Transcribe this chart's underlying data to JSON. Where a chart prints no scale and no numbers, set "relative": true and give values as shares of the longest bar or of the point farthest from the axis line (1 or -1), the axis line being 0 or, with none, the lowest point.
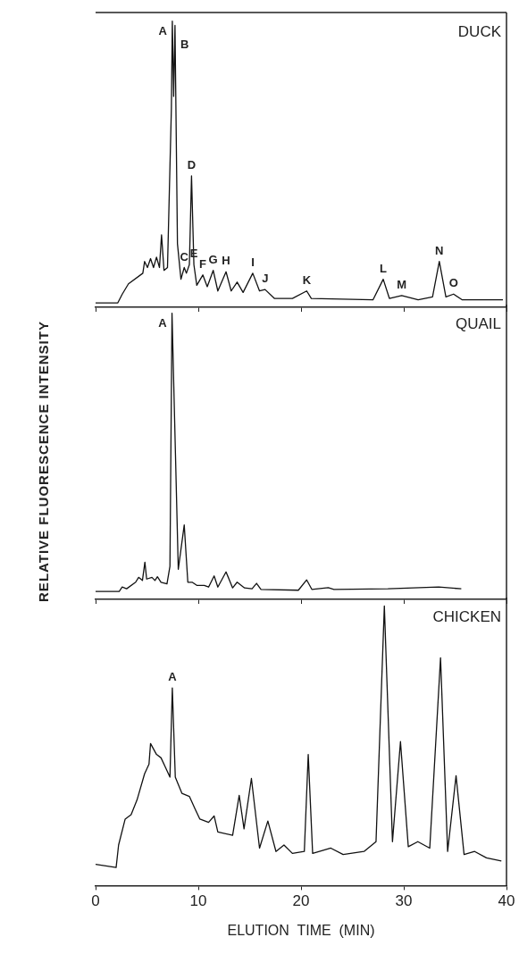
{
  "chart_data": [
    {
      "type": "line",
      "title": "DUCK",
      "relative": true,
      "color": "#111111",
      "marker": "none",
      "line_style": "solid",
      "tick_labels": false,
      "xlim": [
        0,
        40
      ],
      "xticks": [
        0,
        10,
        20,
        30,
        40
      ],
      "x": [
        0,
        2.15,
        2.6,
        3.2,
        4.6,
        4.77,
        5.05,
        5.35,
        5.64,
        5.93,
        6.22,
        6.42,
        6.66,
        7.0,
        7.38,
        7.47,
        7.6,
        7.73,
        7.97,
        8.31,
        8.63,
        8.84,
        9.13,
        9.34,
        9.57,
        9.85,
        10.44,
        10.87,
        11.45,
        11.9,
        12.7,
        13.2,
        13.78,
        14.36,
        15.3,
        15.96,
        16.5,
        17.4,
        19.16,
        20.55,
        21.0,
        27.0,
        28.0,
        28.6,
        29.8,
        31.4,
        32.8,
        33.46,
        34.1,
        34.85,
        35.7,
        39.65
      ],
      "values": [
        0.015,
        0.015,
        0.046,
        0.082,
        0.119,
        0.16,
        0.139,
        0.17,
        0.139,
        0.175,
        0.139,
        0.253,
        0.129,
        0.139,
        0.696,
        1.0,
        0.737,
        0.985,
        0.222,
        0.098,
        0.139,
        0.119,
        0.149,
        0.459,
        0.149,
        0.077,
        0.113,
        0.072,
        0.129,
        0.057,
        0.124,
        0.057,
        0.088,
        0.052,
        0.119,
        0.057,
        0.062,
        0.031,
        0.031,
        0.057,
        0.031,
        0.026,
        0.098,
        0.031,
        0.041,
        0.026,
        0.036,
        0.16,
        0.036,
        0.046,
        0.026,
        0.026
      ],
      "annotations": [
        {
          "text": "A",
          "x": 7.47,
          "y": 1.0
        },
        {
          "text": "B",
          "x": 7.73,
          "y": 0.985
        },
        {
          "text": "C",
          "x": 8.63,
          "y": 0.139
        },
        {
          "text": "D",
          "x": 9.34,
          "y": 0.459
        },
        {
          "text": "E",
          "x": 9.57,
          "y": 0.149
        },
        {
          "text": "F",
          "x": 10.44,
          "y": 0.113
        },
        {
          "text": "G",
          "x": 11.45,
          "y": 0.129
        },
        {
          "text": "H",
          "x": 12.7,
          "y": 0.124
        },
        {
          "text": "I",
          "x": 15.3,
          "y": 0.119
        },
        {
          "text": "J",
          "x": 16.5,
          "y": 0.062
        },
        {
          "text": "K",
          "x": 20.55,
          "y": 0.057
        },
        {
          "text": "L",
          "x": 28.0,
          "y": 0.098
        },
        {
          "text": "M",
          "x": 29.8,
          "y": 0.041
        },
        {
          "text": "N",
          "x": 33.46,
          "y": 0.16
        },
        {
          "text": "O",
          "x": 34.85,
          "y": 0.046
        }
      ]
    },
    {
      "type": "line",
      "title": "QUAIL",
      "ylabel": "RELATIVE  FLUORESCENCE  INTENSITY",
      "relative": true,
      "color": "#111111",
      "marker": "none",
      "line_style": "solid",
      "tick_labels": false,
      "xlim": [
        0,
        40
      ],
      "xticks": [
        0,
        10,
        20,
        30,
        40
      ],
      "x": [
        0,
        2.3,
        2.59,
        3.02,
        3.9,
        4.19,
        4.56,
        4.8,
        4.97,
        5.49,
        5.78,
        6.02,
        6.37,
        6.95,
        7.24,
        7.44,
        8.05,
        8.63,
        8.98,
        9.4,
        9.85,
        10.58,
        11.0,
        11.54,
        11.9,
        12.7,
        13.34,
        13.78,
        14.5,
        15.23,
        15.67,
        16.1,
        19.74,
        20.55,
        21.05,
        22.65,
        23.2,
        28.46,
        33.4,
        35.6
      ],
      "values": [
        0.028,
        0.028,
        0.043,
        0.037,
        0.06,
        0.077,
        0.066,
        0.13,
        0.071,
        0.077,
        0.066,
        0.079,
        0.06,
        0.054,
        0.116,
        1.0,
        0.105,
        0.26,
        0.06,
        0.06,
        0.049,
        0.049,
        0.043,
        0.082,
        0.043,
        0.096,
        0.04,
        0.06,
        0.04,
        0.037,
        0.056,
        0.035,
        0.032,
        0.068,
        0.035,
        0.041,
        0.035,
        0.037,
        0.043,
        0.037
      ],
      "annotations": [
        {
          "text": "A",
          "x": 7.44,
          "y": 1.0
        }
      ]
    },
    {
      "type": "line",
      "title": "CHICKEN",
      "xlabel": "ELUTION  TIME  (MIN)",
      "relative": true,
      "color": "#111111",
      "marker": "none",
      "line_style": "solid",
      "tick_labels": "x",
      "xlim": [
        0,
        40
      ],
      "xticks": [
        0,
        10,
        20,
        30,
        40
      ],
      "x": [
        0,
        2.0,
        2.24,
        2.88,
        3.46,
        4.04,
        4.77,
        5.2,
        5.35,
        5.93,
        6.37,
        6.8,
        7.24,
        7.47,
        7.76,
        8.4,
        9.13,
        9.7,
        10.15,
        11.0,
        11.54,
        11.9,
        13.34,
        13.98,
        14.45,
        15.17,
        15.96,
        16.77,
        17.56,
        18.34,
        19.16,
        20.32,
        20.7,
        21.13,
        22.9,
        24.1,
        26.13,
        27.3,
        28.11,
        28.9,
        29.68,
        30.44,
        31.37,
        32.53,
        33.58,
        34.27,
        35.09,
        35.87,
        36.9,
        38.05,
        39.5
      ],
      "values": [
        0.076,
        0.065,
        0.145,
        0.238,
        0.254,
        0.307,
        0.4,
        0.434,
        0.508,
        0.469,
        0.457,
        0.423,
        0.388,
        0.707,
        0.388,
        0.33,
        0.319,
        0.273,
        0.238,
        0.226,
        0.249,
        0.192,
        0.18,
        0.323,
        0.203,
        0.383,
        0.134,
        0.231,
        0.122,
        0.145,
        0.115,
        0.122,
        0.469,
        0.115,
        0.134,
        0.111,
        0.122,
        0.157,
        1.0,
        0.157,
        0.515,
        0.139,
        0.157,
        0.134,
        0.815,
        0.122,
        0.393,
        0.111,
        0.122,
        0.099,
        0.088
      ],
      "annotations": [
        {
          "text": "A",
          "x": 7.47,
          "y": 0.707
        }
      ]
    }
  ]
}
